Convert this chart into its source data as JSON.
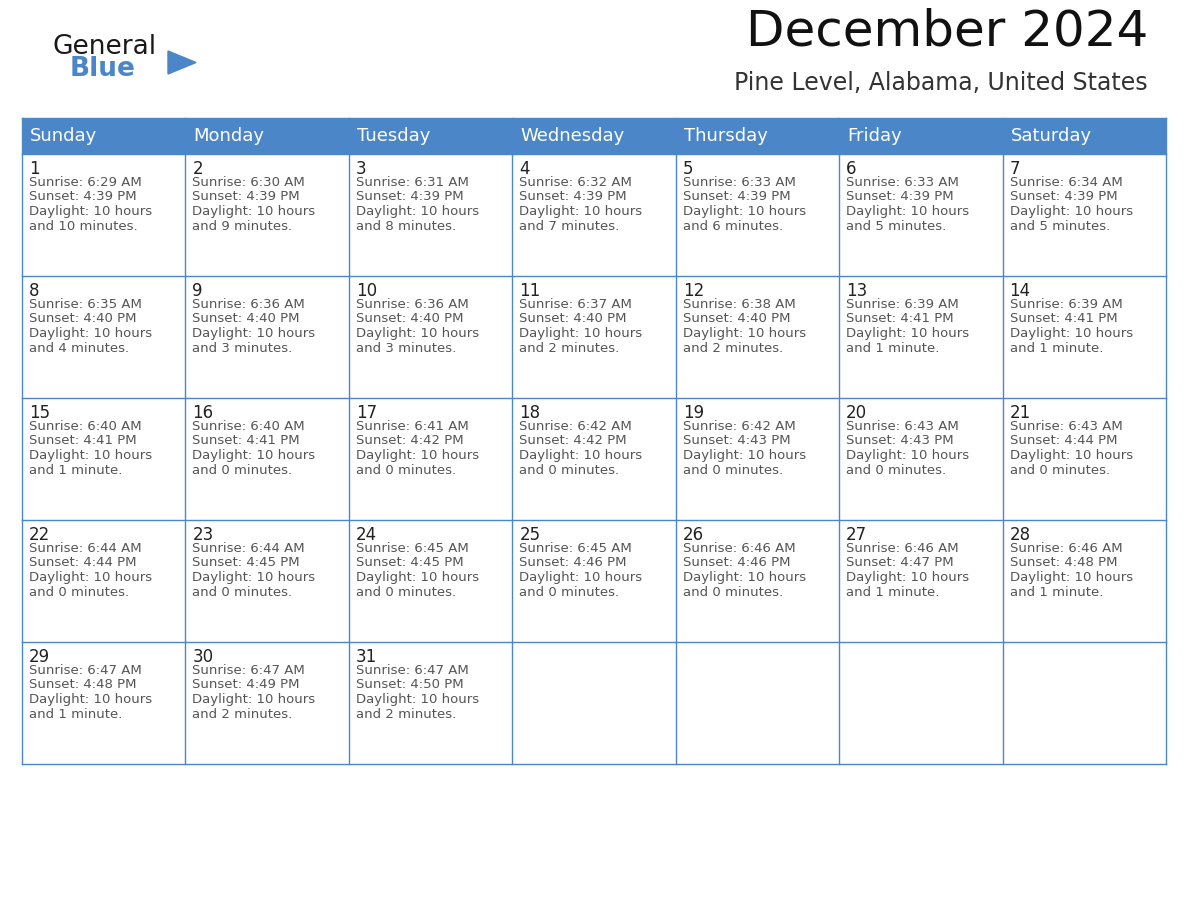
{
  "title": "December 2024",
  "subtitle": "Pine Level, Alabama, United States",
  "header_color": "#4a86c8",
  "header_text_color": "#ffffff",
  "cell_bg_color": "#ffffff",
  "cell_border_color": "#4a86c8",
  "day_number_color": "#333333",
  "cell_text_color": "#555555",
  "days_of_week": [
    "Sunday",
    "Monday",
    "Tuesday",
    "Wednesday",
    "Thursday",
    "Friday",
    "Saturday"
  ],
  "weeks": [
    [
      {
        "day": 1,
        "sunrise": "6:29 AM",
        "sunset": "4:39 PM",
        "daylight_line1": "Daylight: 10 hours",
        "daylight_line2": "and 10 minutes."
      },
      {
        "day": 2,
        "sunrise": "6:30 AM",
        "sunset": "4:39 PM",
        "daylight_line1": "Daylight: 10 hours",
        "daylight_line2": "and 9 minutes."
      },
      {
        "day": 3,
        "sunrise": "6:31 AM",
        "sunset": "4:39 PM",
        "daylight_line1": "Daylight: 10 hours",
        "daylight_line2": "and 8 minutes."
      },
      {
        "day": 4,
        "sunrise": "6:32 AM",
        "sunset": "4:39 PM",
        "daylight_line1": "Daylight: 10 hours",
        "daylight_line2": "and 7 minutes."
      },
      {
        "day": 5,
        "sunrise": "6:33 AM",
        "sunset": "4:39 PM",
        "daylight_line1": "Daylight: 10 hours",
        "daylight_line2": "and 6 minutes."
      },
      {
        "day": 6,
        "sunrise": "6:33 AM",
        "sunset": "4:39 PM",
        "daylight_line1": "Daylight: 10 hours",
        "daylight_line2": "and 5 minutes."
      },
      {
        "day": 7,
        "sunrise": "6:34 AM",
        "sunset": "4:39 PM",
        "daylight_line1": "Daylight: 10 hours",
        "daylight_line2": "and 5 minutes."
      }
    ],
    [
      {
        "day": 8,
        "sunrise": "6:35 AM",
        "sunset": "4:40 PM",
        "daylight_line1": "Daylight: 10 hours",
        "daylight_line2": "and 4 minutes."
      },
      {
        "day": 9,
        "sunrise": "6:36 AM",
        "sunset": "4:40 PM",
        "daylight_line1": "Daylight: 10 hours",
        "daylight_line2": "and 3 minutes."
      },
      {
        "day": 10,
        "sunrise": "6:36 AM",
        "sunset": "4:40 PM",
        "daylight_line1": "Daylight: 10 hours",
        "daylight_line2": "and 3 minutes."
      },
      {
        "day": 11,
        "sunrise": "6:37 AM",
        "sunset": "4:40 PM",
        "daylight_line1": "Daylight: 10 hours",
        "daylight_line2": "and 2 minutes."
      },
      {
        "day": 12,
        "sunrise": "6:38 AM",
        "sunset": "4:40 PM",
        "daylight_line1": "Daylight: 10 hours",
        "daylight_line2": "and 2 minutes."
      },
      {
        "day": 13,
        "sunrise": "6:39 AM",
        "sunset": "4:41 PM",
        "daylight_line1": "Daylight: 10 hours",
        "daylight_line2": "and 1 minute."
      },
      {
        "day": 14,
        "sunrise": "6:39 AM",
        "sunset": "4:41 PM",
        "daylight_line1": "Daylight: 10 hours",
        "daylight_line2": "and 1 minute."
      }
    ],
    [
      {
        "day": 15,
        "sunrise": "6:40 AM",
        "sunset": "4:41 PM",
        "daylight_line1": "Daylight: 10 hours",
        "daylight_line2": "and 1 minute."
      },
      {
        "day": 16,
        "sunrise": "6:40 AM",
        "sunset": "4:41 PM",
        "daylight_line1": "Daylight: 10 hours",
        "daylight_line2": "and 0 minutes."
      },
      {
        "day": 17,
        "sunrise": "6:41 AM",
        "sunset": "4:42 PM",
        "daylight_line1": "Daylight: 10 hours",
        "daylight_line2": "and 0 minutes."
      },
      {
        "day": 18,
        "sunrise": "6:42 AM",
        "sunset": "4:42 PM",
        "daylight_line1": "Daylight: 10 hours",
        "daylight_line2": "and 0 minutes."
      },
      {
        "day": 19,
        "sunrise": "6:42 AM",
        "sunset": "4:43 PM",
        "daylight_line1": "Daylight: 10 hours",
        "daylight_line2": "and 0 minutes."
      },
      {
        "day": 20,
        "sunrise": "6:43 AM",
        "sunset": "4:43 PM",
        "daylight_line1": "Daylight: 10 hours",
        "daylight_line2": "and 0 minutes."
      },
      {
        "day": 21,
        "sunrise": "6:43 AM",
        "sunset": "4:44 PM",
        "daylight_line1": "Daylight: 10 hours",
        "daylight_line2": "and 0 minutes."
      }
    ],
    [
      {
        "day": 22,
        "sunrise": "6:44 AM",
        "sunset": "4:44 PM",
        "daylight_line1": "Daylight: 10 hours",
        "daylight_line2": "and 0 minutes."
      },
      {
        "day": 23,
        "sunrise": "6:44 AM",
        "sunset": "4:45 PM",
        "daylight_line1": "Daylight: 10 hours",
        "daylight_line2": "and 0 minutes."
      },
      {
        "day": 24,
        "sunrise": "6:45 AM",
        "sunset": "4:45 PM",
        "daylight_line1": "Daylight: 10 hours",
        "daylight_line2": "and 0 minutes."
      },
      {
        "day": 25,
        "sunrise": "6:45 AM",
        "sunset": "4:46 PM",
        "daylight_line1": "Daylight: 10 hours",
        "daylight_line2": "and 0 minutes."
      },
      {
        "day": 26,
        "sunrise": "6:46 AM",
        "sunset": "4:46 PM",
        "daylight_line1": "Daylight: 10 hours",
        "daylight_line2": "and 0 minutes."
      },
      {
        "day": 27,
        "sunrise": "6:46 AM",
        "sunset": "4:47 PM",
        "daylight_line1": "Daylight: 10 hours",
        "daylight_line2": "and 1 minute."
      },
      {
        "day": 28,
        "sunrise": "6:46 AM",
        "sunset": "4:48 PM",
        "daylight_line1": "Daylight: 10 hours",
        "daylight_line2": "and 1 minute."
      }
    ],
    [
      {
        "day": 29,
        "sunrise": "6:47 AM",
        "sunset": "4:48 PM",
        "daylight_line1": "Daylight: 10 hours",
        "daylight_line2": "and 1 minute."
      },
      {
        "day": 30,
        "sunrise": "6:47 AM",
        "sunset": "4:49 PM",
        "daylight_line1": "Daylight: 10 hours",
        "daylight_line2": "and 2 minutes."
      },
      {
        "day": 31,
        "sunrise": "6:47 AM",
        "sunset": "4:50 PM",
        "daylight_line1": "Daylight: 10 hours",
        "daylight_line2": "and 2 minutes."
      },
      null,
      null,
      null,
      null
    ]
  ],
  "logo_color_general": "#1a1a1a",
  "logo_color_blue": "#4a86c8",
  "logo_triangle_color": "#4a86c8",
  "title_fontsize": 36,
  "subtitle_fontsize": 17,
  "header_fontsize": 13,
  "day_num_fontsize": 12,
  "cell_text_fontsize": 9.5
}
